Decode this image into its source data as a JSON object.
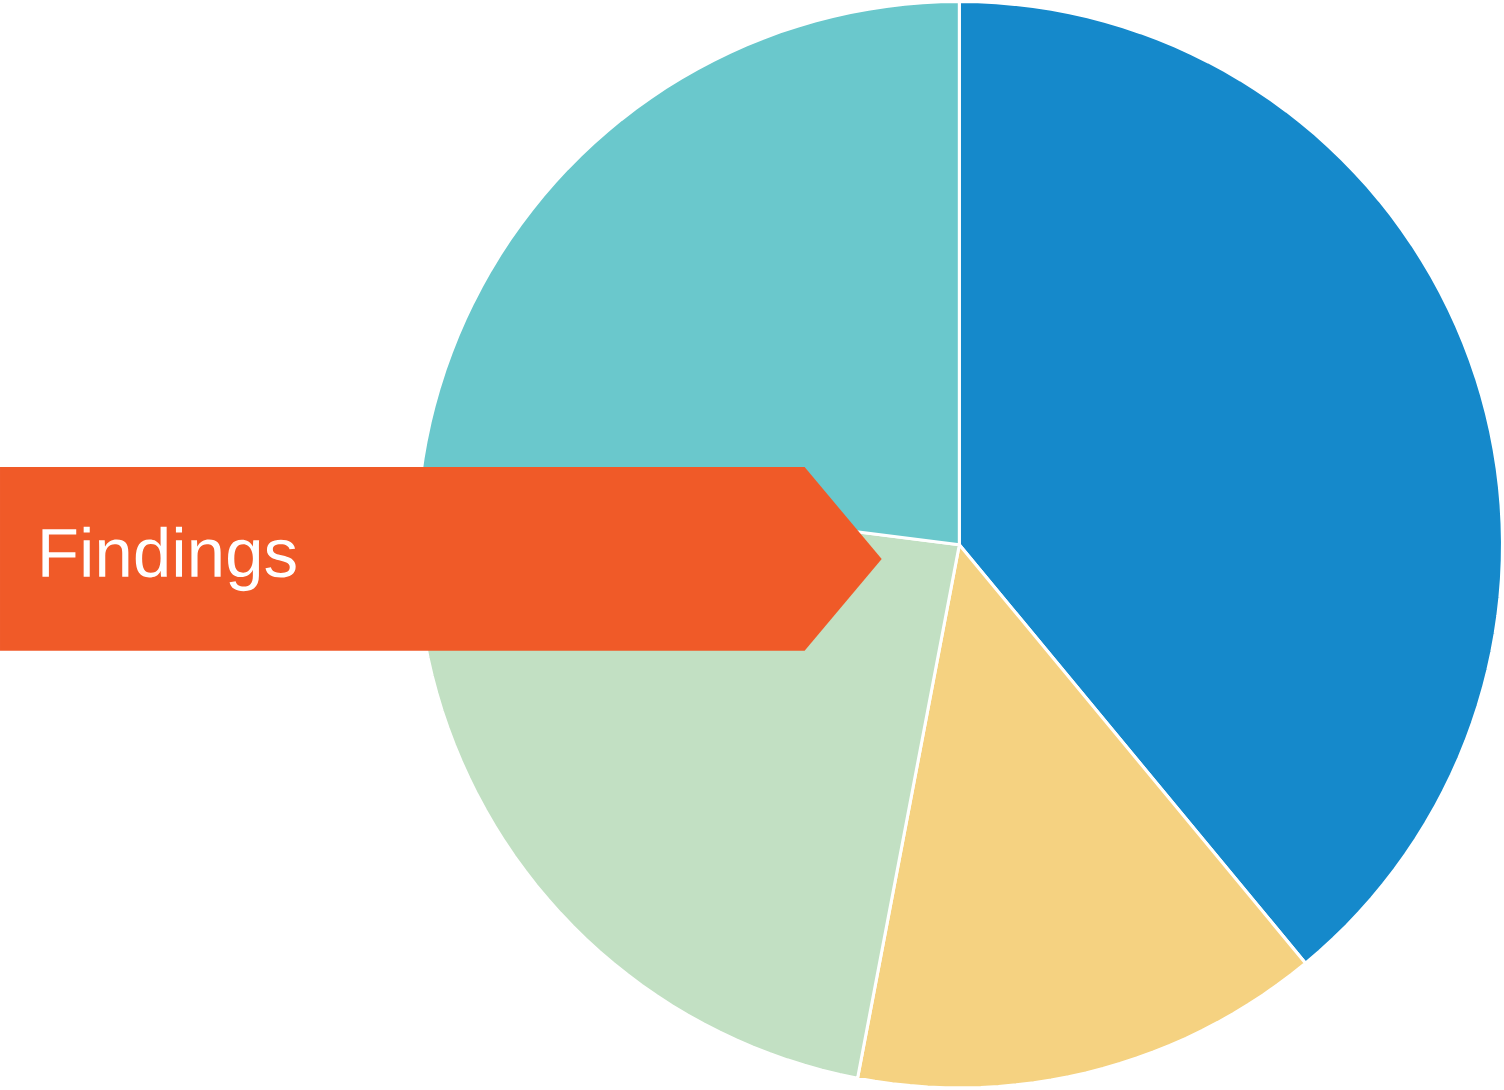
{
  "chart_data": {
    "type": "pie",
    "categories": [
      null,
      null,
      null,
      null
    ],
    "values": [
      39,
      14,
      24,
      23
    ],
    "colors": [
      "#1589cb",
      "#f5d281",
      "#c2e0c3",
      "#6ac8cc"
    ],
    "annotations": [
      "Findings"
    ]
  }
}
